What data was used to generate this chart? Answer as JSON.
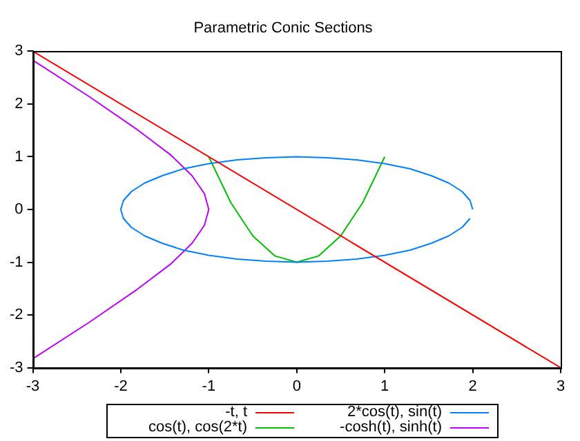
{
  "chart_data": {
    "type": "line",
    "title": "Parametric Conic Sections",
    "xlim": [
      -3,
      3
    ],
    "ylim": [
      -3,
      3
    ],
    "xticks": [
      -3,
      -2,
      -1,
      0,
      1,
      2,
      3
    ],
    "yticks": [
      -3,
      -2,
      -1,
      0,
      1,
      2,
      3
    ],
    "grid": false,
    "legend": "bottom",
    "marker": "none",
    "line_style": "solid",
    "series": [
      {
        "name": "-t, t",
        "color": "#ff0000",
        "x": [
          3,
          -3
        ],
        "values": [
          -3,
          3
        ]
      },
      {
        "name": "2*cos(t), sin(t)",
        "color": "#0080ff",
        "x": [
          2,
          1.97,
          1.88,
          1.73,
          1.53,
          1.29,
          1,
          0.68,
          0.35,
          0,
          -0.35,
          -0.68,
          -1,
          -1.29,
          -1.53,
          -1.73,
          -1.88,
          -1.97,
          -2,
          -1.97,
          -1.88,
          -1.73,
          -1.53,
          -1.29,
          -1,
          -0.68,
          -0.35,
          0,
          0.35,
          0.68,
          1,
          1.29,
          1.53,
          1.73,
          1.88,
          1.97
        ],
        "values": [
          0,
          0.17,
          0.34,
          0.5,
          0.64,
          0.77,
          0.87,
          0.94,
          0.98,
          1,
          0.98,
          0.94,
          0.87,
          0.77,
          0.64,
          0.5,
          0.34,
          0.17,
          0,
          -0.17,
          -0.34,
          -0.5,
          -0.64,
          -0.77,
          -0.87,
          -0.94,
          -0.98,
          -1,
          -0.98,
          -0.94,
          -0.87,
          -0.77,
          -0.64,
          -0.5,
          -0.34,
          -0.17
        ]
      },
      {
        "name": "cos(t), cos(2*t)",
        "color": "#00c000",
        "x": [
          -1,
          -0.75,
          -0.5,
          -0.25,
          0,
          0.25,
          0.5,
          0.75,
          1
        ],
        "values": [
          1,
          0.13,
          -0.5,
          -0.88,
          -1,
          -0.88,
          -0.5,
          0.13,
          1
        ]
      },
      {
        "name": "-cosh(t), sinh(t)",
        "color": "#c000ff",
        "x": [
          -3,
          -2.35,
          -1.81,
          -1.43,
          -1.19,
          -1.05,
          -1,
          -1.05,
          -1.19,
          -1.43,
          -1.81,
          -2.35,
          -3
        ],
        "values": [
          -2.83,
          -2.13,
          -1.51,
          -1.03,
          -0.64,
          -0.3,
          0,
          0.3,
          0.64,
          1.03,
          1.51,
          2.13,
          2.83
        ]
      }
    ]
  }
}
